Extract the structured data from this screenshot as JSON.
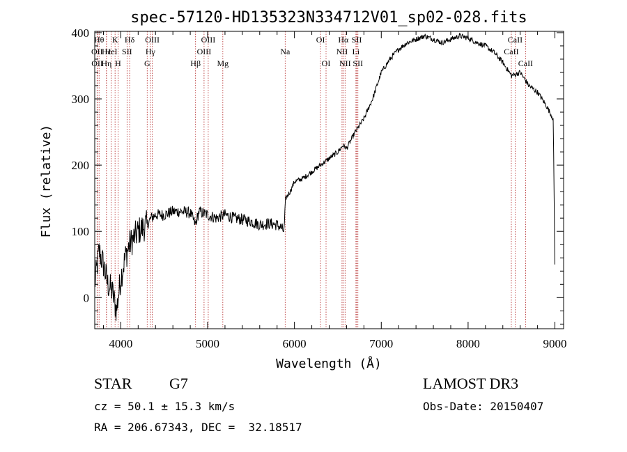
{
  "chart_data": {
    "type": "line",
    "title": "spec-57120-HD135323N334712V01_sp02-028.fits",
    "xlabel": "Wavelength (Å)",
    "ylabel": "Flux (relative)",
    "xlim": [
      3700,
      9100
    ],
    "ylim": [
      -47,
      402
    ],
    "xticks": [
      4000,
      5000,
      6000,
      7000,
      8000,
      9000
    ],
    "yticks": [
      0,
      100,
      200,
      300,
      400
    ],
    "series": [
      {
        "name": "flux",
        "x": [
          3700,
          3750,
          3800,
          3850,
          3900,
          3950,
          4000,
          4050,
          4100,
          4150,
          4200,
          4250,
          4300,
          4350,
          4400,
          4500,
          4600,
          4700,
          4800,
          4860,
          4900,
          5000,
          5100,
          5200,
          5300,
          5400,
          5500,
          5600,
          5700,
          5800,
          5850,
          5880,
          5900,
          5950,
          6000,
          6100,
          6200,
          6300,
          6400,
          6500,
          6560,
          6600,
          6700,
          6800,
          6900,
          7000,
          7100,
          7200,
          7300,
          7400,
          7500,
          7600,
          7700,
          7800,
          7900,
          8000,
          8100,
          8200,
          8300,
          8400,
          8500,
          8600,
          8700,
          8800,
          8900,
          8980,
          9000
        ],
        "y": [
          20,
          70,
          50,
          20,
          10,
          -20,
          30,
          60,
          80,
          90,
          100,
          105,
          110,
          120,
          125,
          125,
          130,
          130,
          128,
          110,
          130,
          125,
          120,
          125,
          120,
          118,
          115,
          110,
          112,
          110,
          105,
          100,
          150,
          160,
          175,
          180,
          190,
          200,
          210,
          220,
          230,
          225,
          250,
          270,
          300,
          340,
          360,
          375,
          385,
          390,
          395,
          390,
          385,
          390,
          395,
          392,
          385,
          380,
          370,
          355,
          335,
          340,
          320,
          310,
          290,
          270,
          50
        ]
      }
    ],
    "line_markers": [
      {
        "wavelength": 3750,
        "label": "Hθ",
        "row": 1
      },
      {
        "wavelength": 3727,
        "label": "OII",
        "row": 2
      },
      {
        "wavelength": 3729,
        "label": "OII",
        "row": 3
      },
      {
        "wavelength": 3835,
        "label": "Hε",
        "row": 2
      },
      {
        "wavelength": 3835,
        "label": "Hη",
        "row": 3
      },
      {
        "wavelength": 3889,
        "label": "HeI",
        "row": 2
      },
      {
        "wavelength": 3934,
        "label": "K",
        "row": 1
      },
      {
        "wavelength": 3968,
        "label": "H",
        "row": 3
      },
      {
        "wavelength": 4072,
        "label": "SII",
        "row": 2
      },
      {
        "wavelength": 4102,
        "label": "Hδ",
        "row": 1
      },
      {
        "wavelength": 4304,
        "label": "G",
        "row": 3
      },
      {
        "wavelength": 4341,
        "label": "Hγ",
        "row": 2
      },
      {
        "wavelength": 4363,
        "label": "OIII",
        "row": 1
      },
      {
        "wavelength": 4861,
        "label": "Hβ",
        "row": 3
      },
      {
        "wavelength": 4959,
        "label": "OIII",
        "row": 2
      },
      {
        "wavelength": 5007,
        "label": "OIII",
        "row": 1
      },
      {
        "wavelength": 5175,
        "label": "Mg",
        "row": 3
      },
      {
        "wavelength": 5893,
        "label": "Na",
        "row": 2
      },
      {
        "wavelength": 6300,
        "label": "OI",
        "row": 1
      },
      {
        "wavelength": 6364,
        "label": "OI",
        "row": 3
      },
      {
        "wavelength": 6548,
        "label": "NII",
        "row": 2
      },
      {
        "wavelength": 6563,
        "label": "Hα",
        "row": 1
      },
      {
        "wavelength": 6583,
        "label": "NII",
        "row": 3
      },
      {
        "wavelength": 6708,
        "label": "Li",
        "row": 2
      },
      {
        "wavelength": 6717,
        "label": "SII",
        "row": 1
      },
      {
        "wavelength": 6731,
        "label": "SII",
        "row": 3
      },
      {
        "wavelength": 8498,
        "label": "CaII",
        "row": 2
      },
      {
        "wavelength": 8542,
        "label": "CaII",
        "row": 1
      },
      {
        "wavelength": 8662,
        "label": "CaII",
        "row": 3
      }
    ]
  },
  "info": {
    "object_type": "STAR",
    "subclass": "G7",
    "survey": "LAMOST DR3",
    "redshift": "cz = 50.1 ± 15.3 km/s",
    "obs_date": "Obs-Date: 20150407",
    "coords": "RA = 206.67343, DEC =  32.18517"
  },
  "colors": {
    "spectrum": "#000000",
    "marker_line": "#b22222",
    "text": "#000000",
    "background": "#ffffff"
  }
}
